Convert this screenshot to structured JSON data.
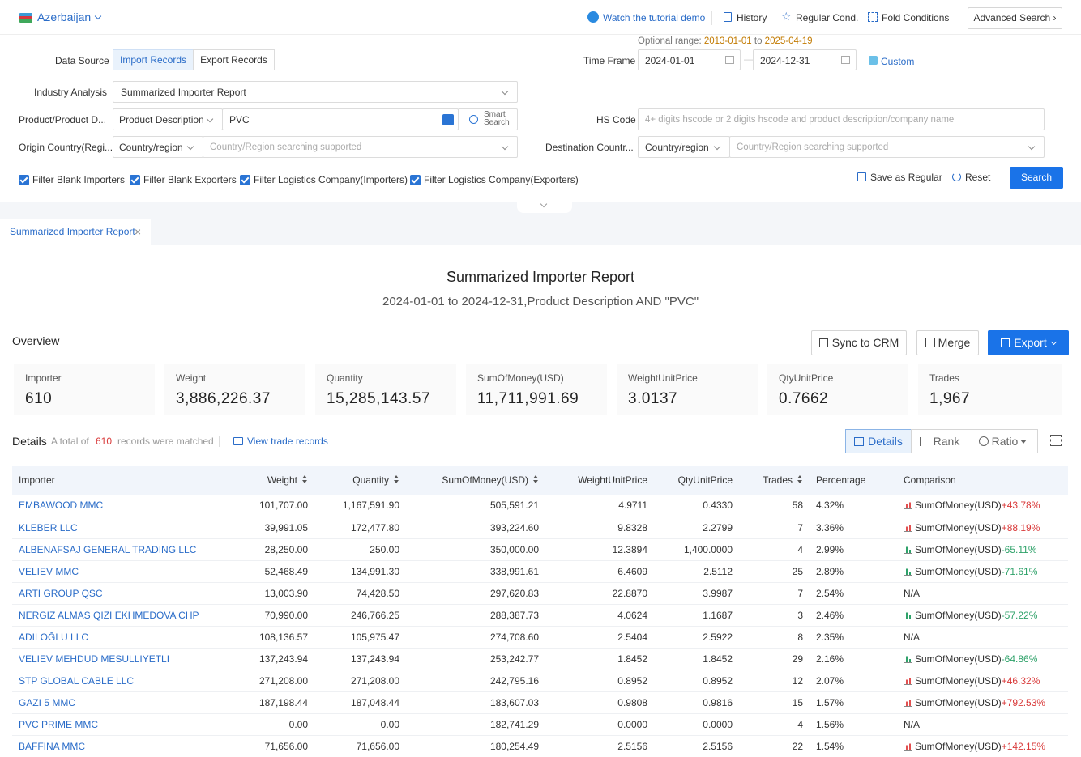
{
  "topbar": {
    "country": "Azerbaijan",
    "links": {
      "tutorial": "Watch the tutorial demo",
      "history": "History",
      "regular": "Regular Cond.",
      "fold": "Fold Conditions"
    },
    "advanced": "Advanced Search"
  },
  "form": {
    "data_source_label": "Data Source",
    "import_records": "Import Records",
    "export_records": "Export Records",
    "optional_range_label": "Optional range",
    "optional_from": "2013-01-01",
    "optional_to_word": "to",
    "optional_to": "2025-04-19",
    "time_frame_label": "Time Frame",
    "date_start": "2024-01-01",
    "date_end": "2024-12-31",
    "custom": "Custom",
    "industry_label": "Industry Analysis",
    "industry_value": "Summarized Importer Report",
    "product_label": "Product/Product D...",
    "product_type": "Product Description",
    "product_value": "PVC",
    "smart_search_1": "Smart",
    "smart_search_2": "Search",
    "hs_label": "HS Code",
    "hs_placeholder": "4+ digits hscode or 2 digits hscode and product description/company name",
    "origin_label": "Origin Country(Regi...",
    "origin_type": "Country/region",
    "origin_placeholder": "Country/Region searching supported",
    "dest_label": "Destination Countr...",
    "dest_type": "Country/region",
    "dest_placeholder": "Country/Region searching supported",
    "filters": [
      "Filter Blank Importers",
      "Filter Blank Exporters",
      "Filter Logistics Company(Importers)",
      "Filter Logistics Company(Exporters)"
    ],
    "save_regular": "Save as Regular",
    "reset": "Reset",
    "search": "Search"
  },
  "tab": {
    "label": "Summarized Importer Report"
  },
  "report": {
    "title": "Summarized Importer Report",
    "subtitle": "2024-01-01 to 2024-12-31,Product Description AND \"PVC\""
  },
  "overview": {
    "label": "Overview",
    "sync": "Sync to CRM",
    "merge": "Merge",
    "export": "Export",
    "cards": [
      {
        "k": "Importer",
        "v": "610"
      },
      {
        "k": "Weight",
        "v": "3,886,226.37"
      },
      {
        "k": "Quantity",
        "v": "15,285,143.57"
      },
      {
        "k": "SumOfMoney(USD)",
        "v": "11,711,991.69"
      },
      {
        "k": "WeightUnitPrice",
        "v": "3.0137"
      },
      {
        "k": "QtyUnitPrice",
        "v": "0.7662"
      },
      {
        "k": "Trades",
        "v": "1,967"
      }
    ]
  },
  "details": {
    "label": "Details",
    "total_prefix": "A total of",
    "total_count": "610",
    "total_suffix": "records were matched",
    "view_trade": "View trade records",
    "view_details": "Details",
    "view_rank": "Rank",
    "view_ratio": "Ratio"
  },
  "table": {
    "headers": [
      "Importer",
      "Weight",
      "Quantity",
      "SumOfMoney(USD)",
      "WeightUnitPrice",
      "QtyUnitPrice",
      "Trades",
      "Percentage",
      "Comparison"
    ],
    "rows": [
      {
        "name": "EMBAWOOD MMC",
        "weight": "101,707.00",
        "qty": "1,167,591.90",
        "money": "505,591.21",
        "wup": "4.9711",
        "qup": "0.4330",
        "trades": "58",
        "pct": "4.32%",
        "cmp_label": "SumOfMoney(USD)",
        "cmp": "+43.78%",
        "dir": "up"
      },
      {
        "name": "KLEBER LLC",
        "weight": "39,991.05",
        "qty": "172,477.80",
        "money": "393,224.60",
        "wup": "9.8328",
        "qup": "2.2799",
        "trades": "7",
        "pct": "3.36%",
        "cmp_label": "SumOfMoney(USD)",
        "cmp": "+88.19%",
        "dir": "up"
      },
      {
        "name": "ALBENAFSAJ GENERAL TRADING LLC",
        "weight": "28,250.00",
        "qty": "250.00",
        "money": "350,000.00",
        "wup": "12.3894",
        "qup": "1,400.0000",
        "trades": "4",
        "pct": "2.99%",
        "cmp_label": "SumOfMoney(USD)",
        "cmp": "-65.11%",
        "dir": "down"
      },
      {
        "name": "VELIEV MMC",
        "weight": "52,468.49",
        "qty": "134,991.30",
        "money": "338,991.61",
        "wup": "6.4609",
        "qup": "2.5112",
        "trades": "25",
        "pct": "2.89%",
        "cmp_label": "SumOfMoney(USD)",
        "cmp": "-71.61%",
        "dir": "down"
      },
      {
        "name": "ARTI GROUP QSC",
        "weight": "13,003.90",
        "qty": "74,428.50",
        "money": "297,620.83",
        "wup": "22.8870",
        "qup": "3.9987",
        "trades": "7",
        "pct": "2.54%",
        "cmp_label": "N/A",
        "cmp": "",
        "dir": "na"
      },
      {
        "name": "NERGIZ ALMAS QIZI EKHMEDOVA CHP",
        "weight": "70,990.00",
        "qty": "246,766.25",
        "money": "288,387.73",
        "wup": "4.0624",
        "qup": "1.1687",
        "trades": "3",
        "pct": "2.46%",
        "cmp_label": "SumOfMoney(USD)",
        "cmp": "-57.22%",
        "dir": "down"
      },
      {
        "name": "ADILOĞLU LLC",
        "weight": "108,136.57",
        "qty": "105,975.47",
        "money": "274,708.60",
        "wup": "2.5404",
        "qup": "2.5922",
        "trades": "8",
        "pct": "2.35%",
        "cmp_label": "N/A",
        "cmp": "",
        "dir": "na"
      },
      {
        "name": "VELIEV MEHDUD MESULLIYETLI",
        "weight": "137,243.94",
        "qty": "137,243.94",
        "money": "253,242.77",
        "wup": "1.8452",
        "qup": "1.8452",
        "trades": "29",
        "pct": "2.16%",
        "cmp_label": "SumOfMoney(USD)",
        "cmp": "-64.86%",
        "dir": "down"
      },
      {
        "name": "STP GLOBAL CABLE LLC",
        "weight": "271,208.00",
        "qty": "271,208.00",
        "money": "242,795.16",
        "wup": "0.8952",
        "qup": "0.8952",
        "trades": "12",
        "pct": "2.07%",
        "cmp_label": "SumOfMoney(USD)",
        "cmp": "+46.32%",
        "dir": "up"
      },
      {
        "name": "GAZI 5 MMC",
        "weight": "187,198.44",
        "qty": "187,048.44",
        "money": "183,607.03",
        "wup": "0.9808",
        "qup": "0.9816",
        "trades": "15",
        "pct": "1.57%",
        "cmp_label": "SumOfMoney(USD)",
        "cmp": "+792.53%",
        "dir": "up"
      },
      {
        "name": "PVC PRIME MMC",
        "weight": "0.00",
        "qty": "0.00",
        "money": "182,741.29",
        "wup": "0.0000",
        "qup": "0.0000",
        "trades": "4",
        "pct": "1.56%",
        "cmp_label": "N/A",
        "cmp": "",
        "dir": "na"
      },
      {
        "name": "BAFFINA MMC",
        "weight": "71,656.00",
        "qty": "71,656.00",
        "money": "180,254.49",
        "wup": "2.5156",
        "qup": "2.5156",
        "trades": "22",
        "pct": "1.54%",
        "cmp_label": "SumOfMoney(USD)",
        "cmp": "+142.15%",
        "dir": "up"
      }
    ]
  }
}
